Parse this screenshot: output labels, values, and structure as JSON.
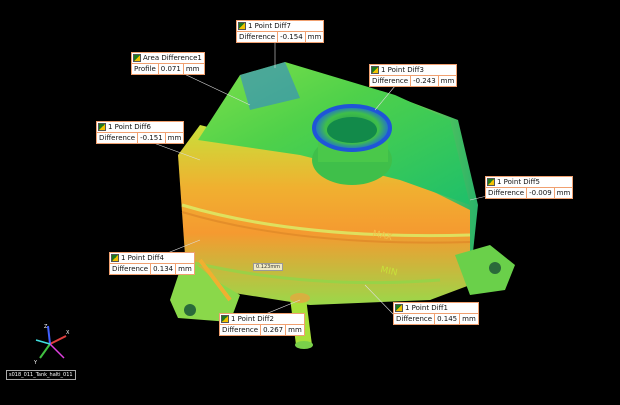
{
  "callouts": [
    {
      "id": "diff7",
      "title": "1 Point Diff7",
      "label": "Difference",
      "value": "-0.154",
      "unit": "mm"
    },
    {
      "id": "area1",
      "title": "Area Difference1",
      "label": "Profile",
      "value": "0.071",
      "unit": "mm"
    },
    {
      "id": "diff3",
      "title": "1 Point Diff3",
      "label": "Difference",
      "value": "-0.243",
      "unit": "mm"
    },
    {
      "id": "diff6",
      "title": "1 Point Diff6",
      "label": "Difference",
      "value": "-0.151",
      "unit": "mm"
    },
    {
      "id": "diff5",
      "title": "1 Point Diff5",
      "label": "Difference",
      "value": "-0.009",
      "unit": "mm"
    },
    {
      "id": "diff4",
      "title": "1 Point Diff4",
      "label": "Difference",
      "value": "0.134",
      "unit": "mm"
    },
    {
      "id": "diff1",
      "title": "1 Point Diff1",
      "label": "Difference",
      "value": "0.145",
      "unit": "mm"
    },
    {
      "id": "diff2",
      "title": "1 Point Diff2",
      "label": "Difference",
      "value": "0.267",
      "unit": "mm"
    }
  ],
  "mid_label": "0.123mm",
  "embossed": {
    "max": "MAX",
    "min": "MIN"
  },
  "axis": {
    "x": "X",
    "y": "Y",
    "z": "Z"
  },
  "part_name": "s018_011_Tank_halti_011",
  "colors": {
    "callout_border": "#f0a070",
    "background": "#000000"
  }
}
